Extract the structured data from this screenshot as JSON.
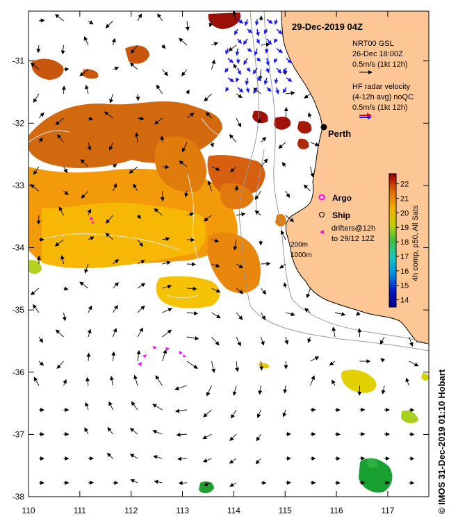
{
  "map": {
    "title": "29-Dec-2019 04Z",
    "lon_range": [
      110,
      117.8
    ],
    "lat_range": [
      -38,
      -30.2
    ],
    "x_ticks": [
      "110",
      "111",
      "112",
      "113",
      "114",
      "115",
      "116",
      "117"
    ],
    "y_ticks": [
      "-31",
      "-32",
      "-33",
      "-34",
      "-35",
      "-36",
      "-37",
      "-38"
    ]
  },
  "legend": {
    "gsl_title": "NRT00 GSL",
    "gsl_date": "26-Dec 18:00Z",
    "gsl_scale": "0.5m/s (1kt 12h)",
    "hf_line1": "HF radar velocity",
    "hf_line2": "(4-12h avg) noQC",
    "hf_scale": "0.5m/s (1kt 12h)",
    "argo": "Argo",
    "ship": "Ship",
    "drifters_line1": "drifters@12h",
    "drifters_line2": "to 29/12 12Z",
    "contour_200": "200m",
    "contour_1000": "1000m"
  },
  "places": {
    "perth": "Perth"
  },
  "colorbar": {
    "label": "4h comp, p50, All Sats",
    "ticks": [
      "14",
      "15",
      "16",
      "17",
      "18",
      "19",
      "20",
      "21",
      "22"
    ],
    "min": 13.5,
    "max": 22.7
  },
  "credit": "© IMOS 31-Dec-2019 01:10 Hobart",
  "colors": {
    "land": "#fcc795",
    "hf_arrow": "#1a1aff",
    "drifter": "#ff00ff",
    "argo": "#ff00ff",
    "sst_low": "#00007f",
    "sst_high": "#8b0000"
  }
}
